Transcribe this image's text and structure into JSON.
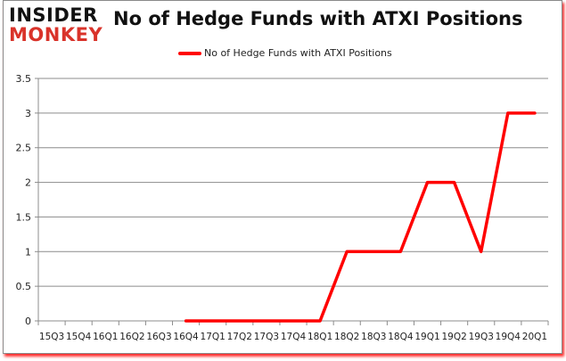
{
  "logo": {
    "line1": "INSIDER",
    "line2": "MONKEY"
  },
  "chart_data": {
    "type": "line",
    "title": "No of Hedge Funds with ATXI Positions",
    "xlabel": "",
    "ylabel": "",
    "categories": [
      "15Q3",
      "15Q4",
      "16Q1",
      "16Q2",
      "16Q3",
      "16Q4",
      "17Q1",
      "17Q2",
      "17Q3",
      "17Q4",
      "18Q1",
      "18Q2",
      "18Q3",
      "18Q4",
      "19Q1",
      "19Q2",
      "19Q3",
      "19Q4",
      "20Q1"
    ],
    "series": [
      {
        "name": "No of Hedge Funds with ATXI Positions",
        "color": "#ff0000",
        "values": [
          null,
          null,
          null,
          null,
          null,
          0,
          0,
          0,
          0,
          0,
          0,
          1,
          1,
          1,
          2,
          2,
          1,
          3,
          3
        ]
      }
    ],
    "ylim": [
      0,
      3.5
    ],
    "yticks": [
      "0",
      "0.5",
      "1",
      "1.5",
      "2",
      "2.5",
      "3",
      "3.5"
    ],
    "grid": true,
    "legend_position": "top"
  }
}
